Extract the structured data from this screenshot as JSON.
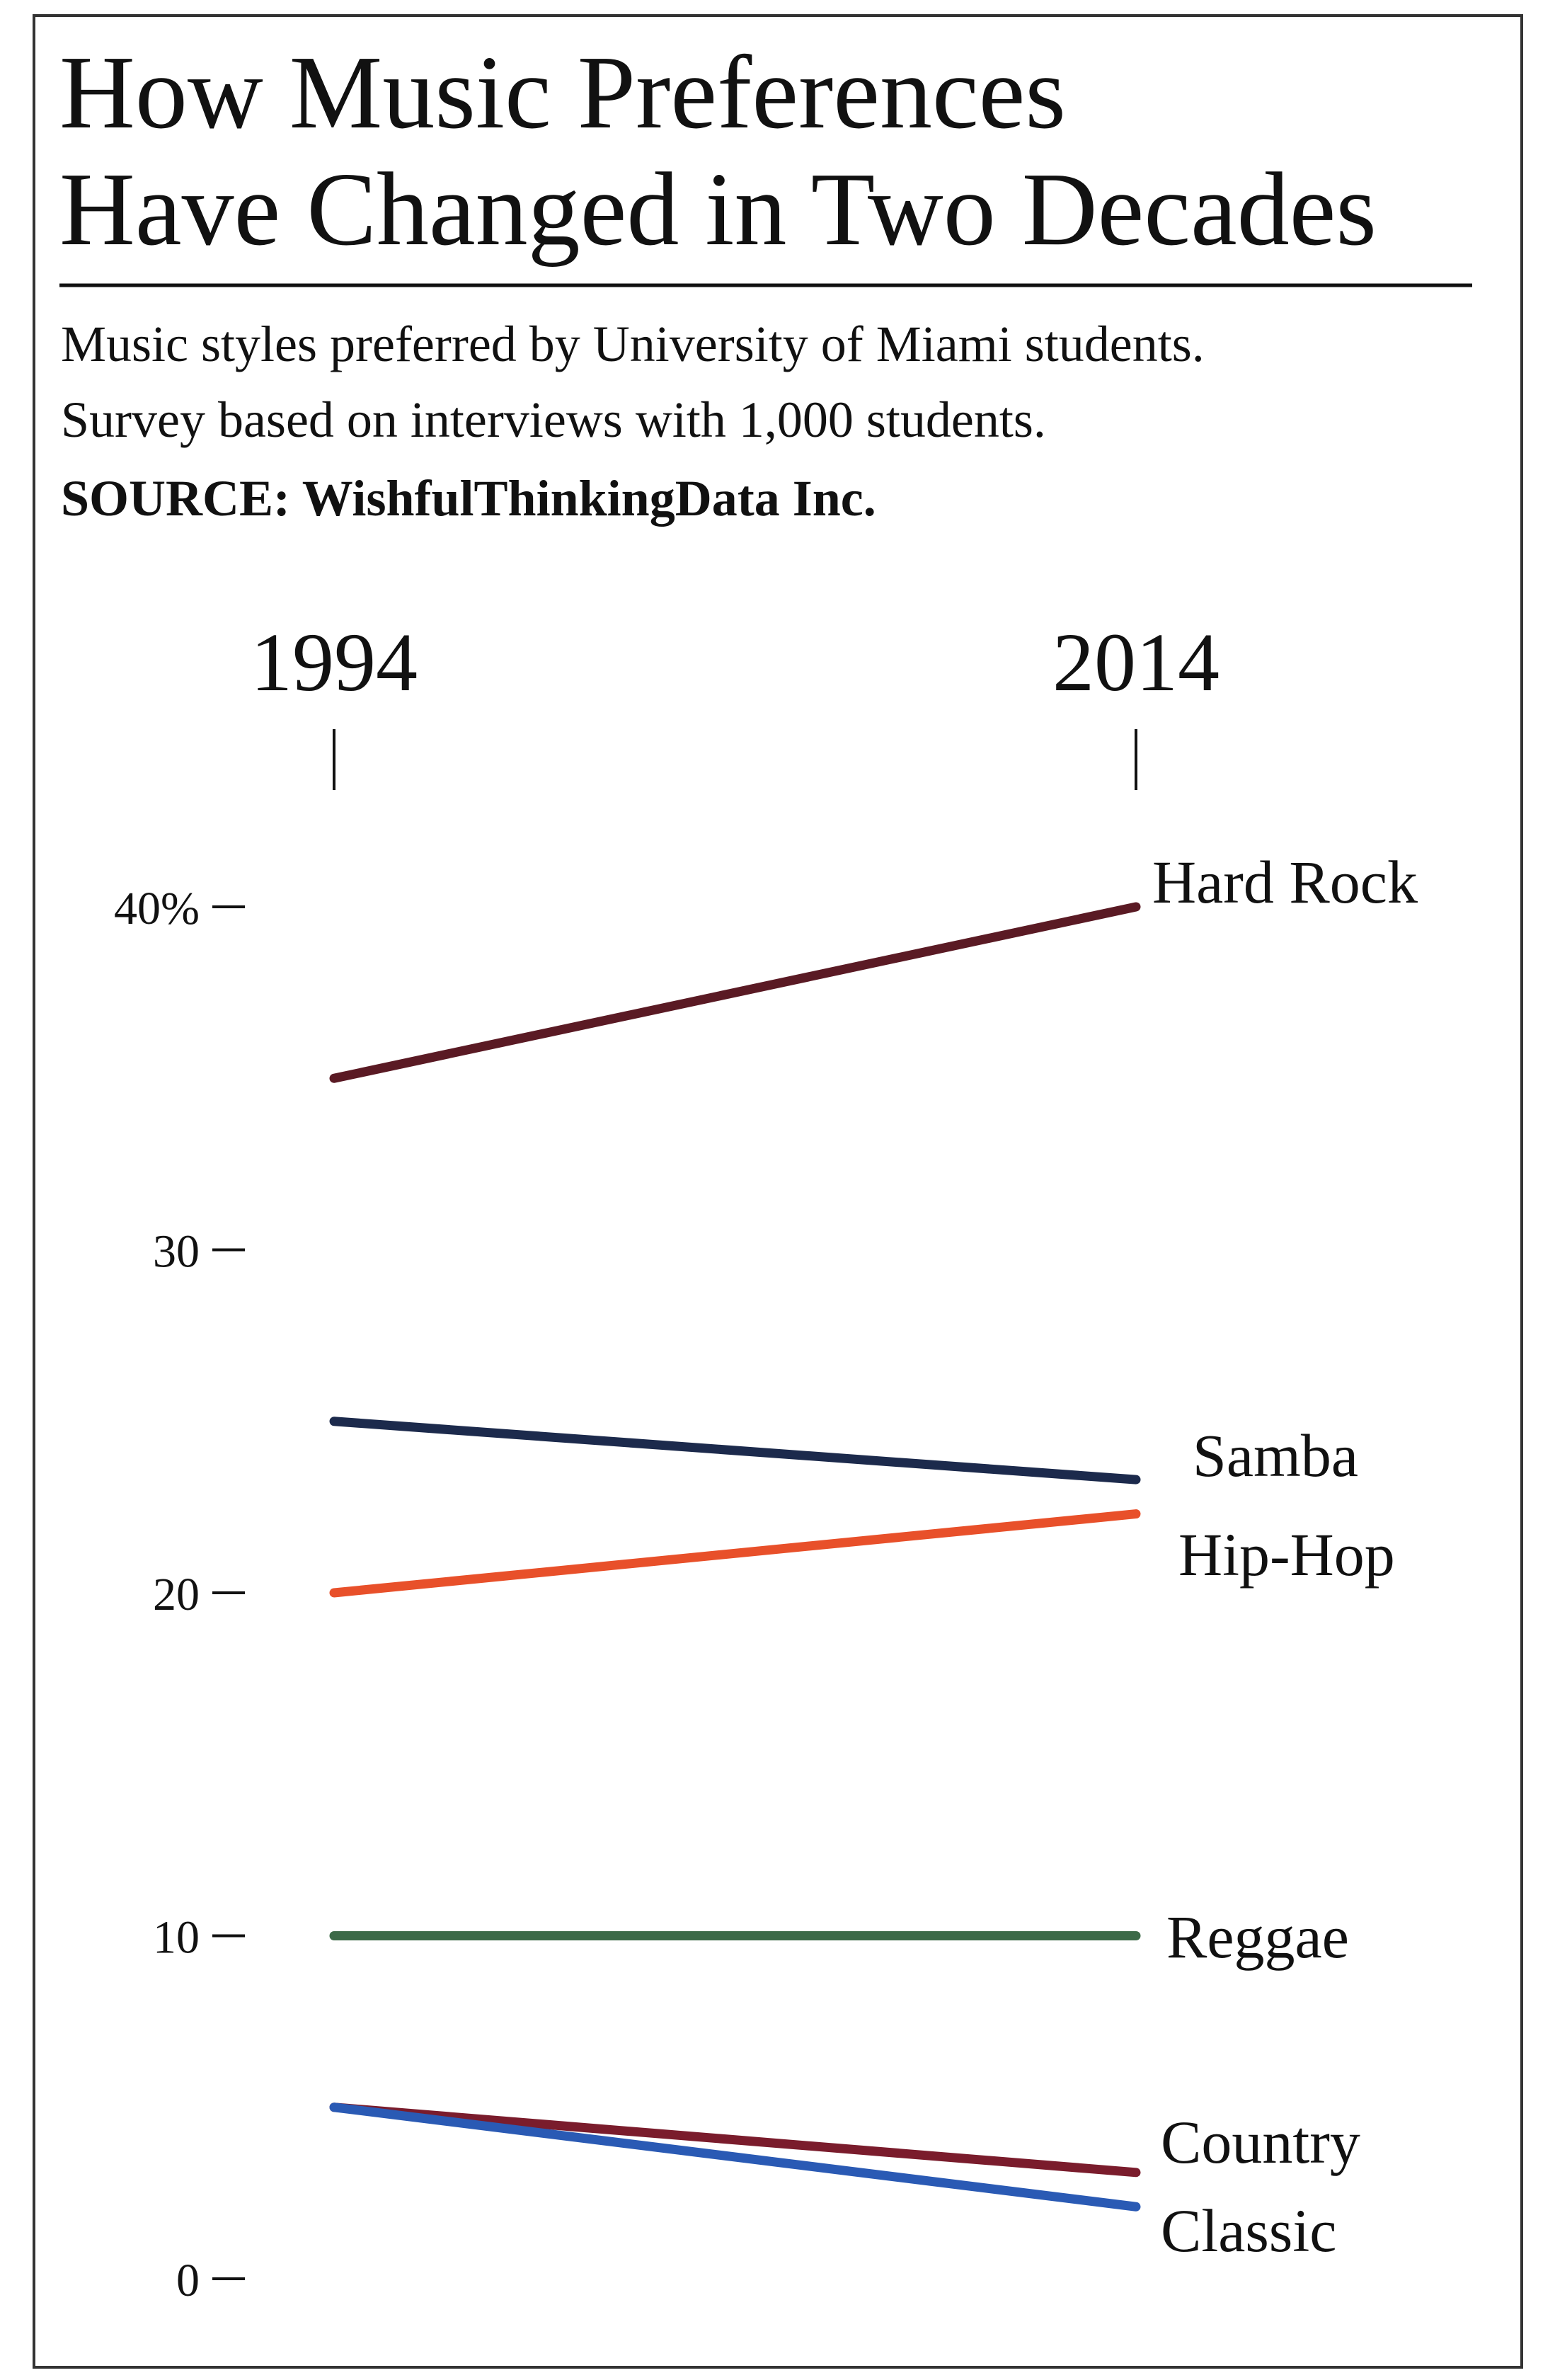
{
  "chart_data": {
    "type": "line",
    "title": [
      "How Music Preferences",
      "Have Changed in Two Decades"
    ],
    "subtitle": [
      "Music styles preferred by University of Miami students.",
      "Survey based on interviews with 1,000 students."
    ],
    "source": "SOURCE: WishfulThinkingData Inc.",
    "categories": [
      "1994",
      "2014"
    ],
    "series": [
      {
        "name": "Hard Rock",
        "color": "#5a1a24",
        "values": [
          35,
          40
        ]
      },
      {
        "name": "Samba",
        "color": "#1c2a4c",
        "values": [
          25,
          23.3
        ]
      },
      {
        "name": "Hip-Hop",
        "color": "#e8502a",
        "values": [
          20,
          22.3
        ]
      },
      {
        "name": "Reggae",
        "color": "#3c6a48",
        "values": [
          10,
          10
        ]
      },
      {
        "name": "Country",
        "color": "#7a1c2c",
        "values": [
          5,
          3.1
        ]
      },
      {
        "name": "Classic",
        "color": "#2a5ab4",
        "values": [
          5,
          2.1
        ]
      }
    ],
    "ylim": [
      0,
      40
    ],
    "yticks": [
      0,
      10,
      20,
      30,
      {
        "value": 40,
        "label": "40%"
      }
    ]
  }
}
